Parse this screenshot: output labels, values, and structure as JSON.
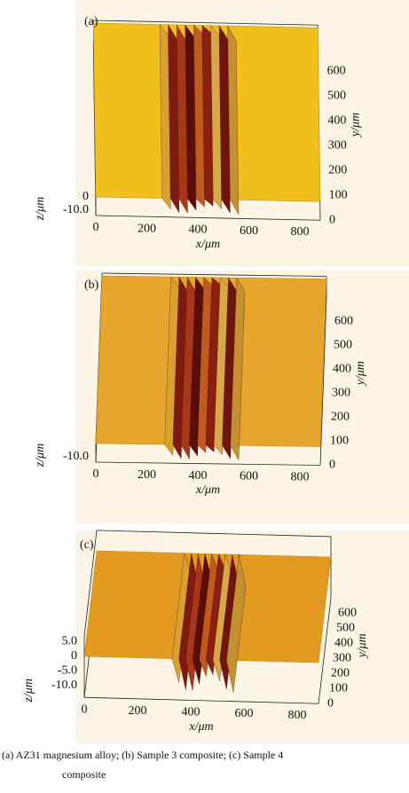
{
  "chart_data": [
    {
      "type": "surface",
      "label": "(a)",
      "xlabel": "x/μm",
      "ylabel": "y/μm",
      "zlabel": "z/μm",
      "color": "#f0c01c",
      "xlim": [
        0,
        880
      ],
      "ylim": [
        0,
        700
      ],
      "zlim": [
        -14,
        2
      ],
      "xticks": [
        0,
        200,
        400,
        600,
        800
      ],
      "yticks": [
        0,
        100,
        200,
        300,
        400,
        500,
        600
      ],
      "zticks": [
        {
          "value": -10,
          "label": "-10.0"
        },
        0
      ]
    },
    {
      "type": "surface",
      "label": "(b)",
      "xlabel": "x/μm",
      "ylabel": "y/μm",
      "zlabel": "z/μm",
      "color": "#e6a52c",
      "xlim": [
        0,
        880
      ],
      "ylim": [
        0,
        700
      ],
      "zlim": [
        -14,
        2
      ],
      "xticks": [
        0,
        200,
        400,
        600,
        800
      ],
      "yticks": [
        0,
        100,
        200,
        300,
        400,
        500,
        600
      ],
      "zticks": [
        {
          "value": -10,
          "label": "-10.0"
        }
      ]
    },
    {
      "type": "surface",
      "label": "(c)",
      "xlabel": "x/μm",
      "ylabel": "y/μm",
      "zlabel": "z/μm",
      "color": "#e39a20",
      "xlim": [
        0,
        880
      ],
      "ylim": [
        0,
        700
      ],
      "zlim": [
        -14,
        7
      ],
      "xticks": [
        0,
        200,
        400,
        600,
        800
      ],
      "yticks": [
        0,
        100,
        200,
        300,
        400,
        500,
        600
      ],
      "zticks": [
        {
          "value": 5,
          "label": "5.0"
        },
        0,
        {
          "value": -5,
          "label": "-5.0"
        },
        {
          "value": -10,
          "label": "-10.0"
        }
      ]
    }
  ],
  "caption": {
    "text1": "(a)  AZ31 magnesium  alloy;  (b)  Sample  3  composite;  (c)  Sample  4",
    "text2": "composite"
  }
}
